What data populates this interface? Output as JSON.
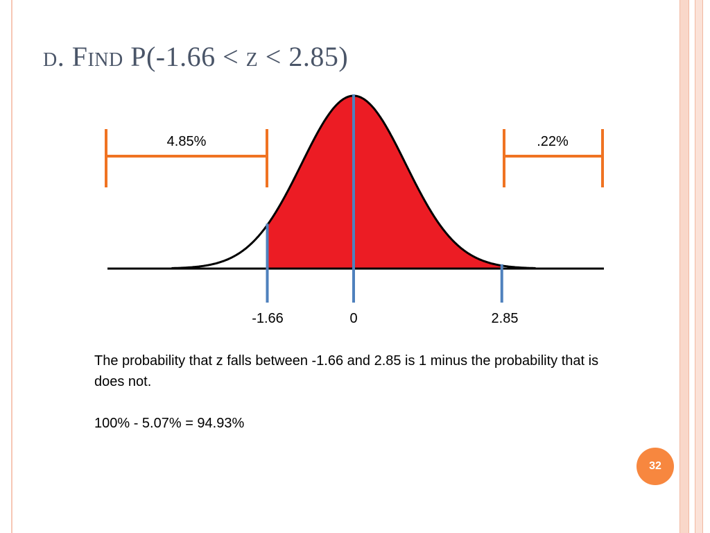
{
  "slide": {
    "title": "d. Find P(-1.66 < z < 2.85)",
    "page_number": "32"
  },
  "diagram": {
    "type": "normal-curve-shaded",
    "z_min": -3.5,
    "z_max": 3.5,
    "shaded_from": -1.66,
    "shaded_to": 2.85,
    "markers": [
      {
        "z": -1.66,
        "label": "-1.66"
      },
      {
        "z": 0,
        "label": "0"
      },
      {
        "z": 2.85,
        "label": "2.85"
      }
    ],
    "tails": {
      "left": {
        "label": "4.85%"
      },
      "right": {
        "label": ".22%"
      }
    },
    "colors": {
      "shade": "#ec1c24",
      "marker": "#4f81bd",
      "bracket": "#f07322",
      "curve": "#000000"
    }
  },
  "text": {
    "line1": "The probability that z falls between -1.66 and 2.85 is 1 minus the probability that is does not.",
    "line2": "100% - 5.07% = 94.93%"
  }
}
